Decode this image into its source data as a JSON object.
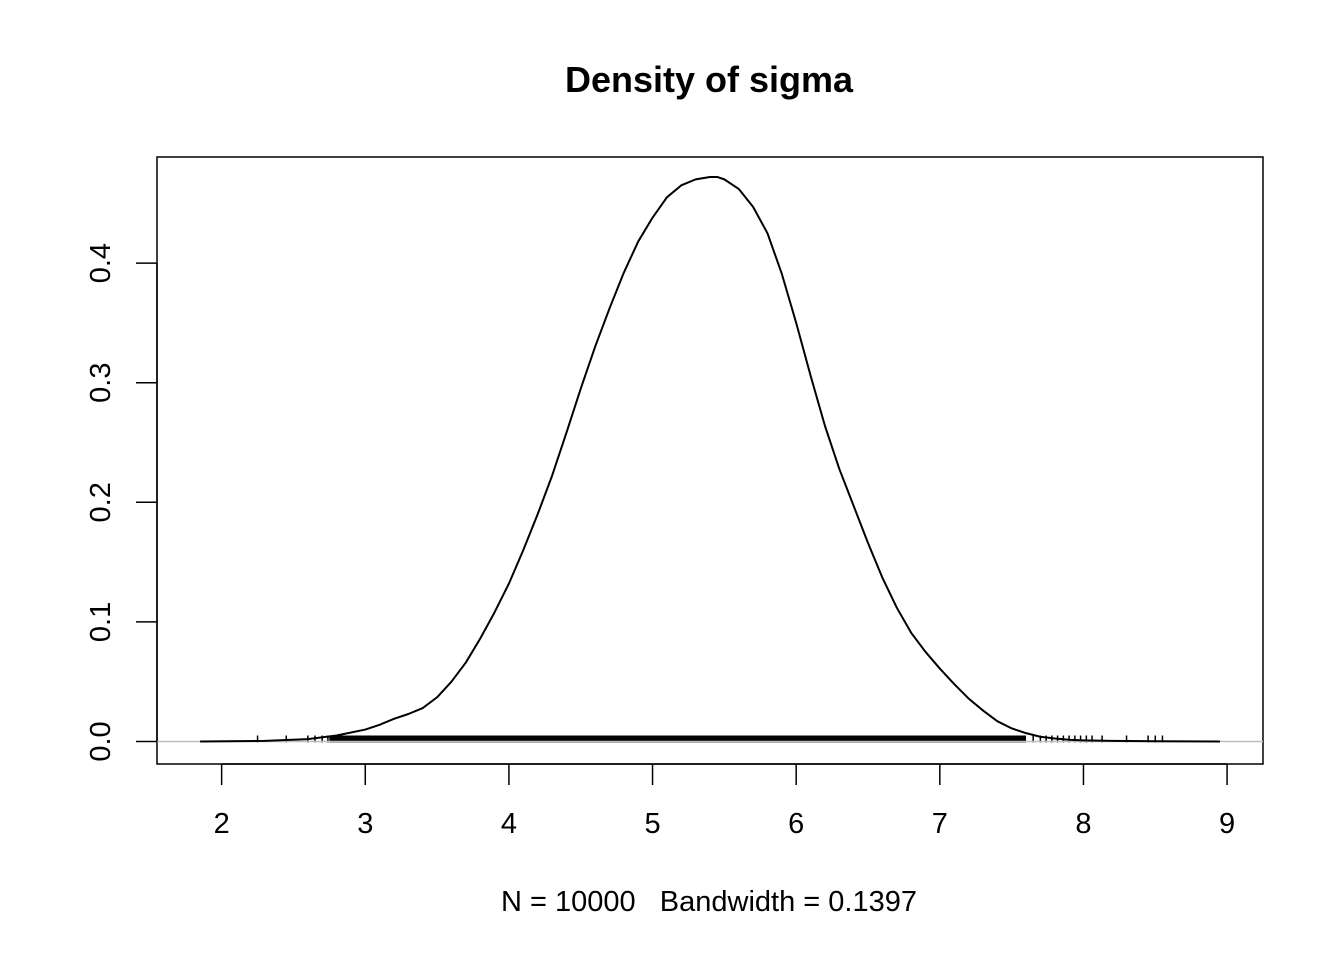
{
  "chart_data": {
    "type": "line",
    "title": "Density of sigma",
    "xlabel": "N = 10000   Bandwidth = 0.1397",
    "ylabel": "",
    "xlim": [
      1.55,
      9.25
    ],
    "ylim": [
      -0.0188,
      0.4887
    ],
    "x_ticks": [
      2,
      3,
      4,
      5,
      6,
      7,
      8,
      9
    ],
    "y_ticks": [
      0.0,
      0.1,
      0.2,
      0.3,
      0.4
    ],
    "x_tick_labels": [
      "2",
      "3",
      "4",
      "5",
      "6",
      "7",
      "8",
      "9"
    ],
    "y_tick_labels": [
      "0.0",
      "0.1",
      "0.2",
      "0.3",
      "0.4"
    ],
    "grid": false,
    "baseline_color": "#bebebe",
    "series": [
      {
        "color": "#000000",
        "x": [
          1.85,
          2.3,
          2.6,
          2.8,
          3.0,
          3.1,
          3.2,
          3.3,
          3.4,
          3.5,
          3.6,
          3.7,
          3.8,
          3.9,
          4.0,
          4.1,
          4.2,
          4.3,
          4.4,
          4.5,
          4.6,
          4.7,
          4.8,
          4.9,
          5.0,
          5.1,
          5.2,
          5.3,
          5.4,
          5.45,
          5.5,
          5.6,
          5.7,
          5.8,
          5.9,
          6.0,
          6.1,
          6.2,
          6.3,
          6.4,
          6.5,
          6.6,
          6.7,
          6.8,
          6.9,
          7.0,
          7.1,
          7.2,
          7.3,
          7.4,
          7.5,
          7.6,
          7.7,
          7.8,
          7.9,
          8.0,
          8.2,
          8.5,
          8.95
        ],
        "y": [
          0.0,
          0.0005,
          0.002,
          0.005,
          0.01,
          0.014,
          0.019,
          0.023,
          0.028,
          0.037,
          0.05,
          0.066,
          0.086,
          0.108,
          0.132,
          0.16,
          0.19,
          0.222,
          0.258,
          0.295,
          0.33,
          0.362,
          0.392,
          0.418,
          0.438,
          0.455,
          0.465,
          0.47,
          0.472,
          0.472,
          0.47,
          0.462,
          0.447,
          0.425,
          0.391,
          0.35,
          0.306,
          0.264,
          0.228,
          0.197,
          0.166,
          0.137,
          0.112,
          0.091,
          0.075,
          0.061,
          0.048,
          0.036,
          0.026,
          0.017,
          0.011,
          0.007,
          0.004,
          0.0025,
          0.0015,
          0.001,
          0.0005,
          0.0002,
          0.0
        ]
      }
    ],
    "rug": [
      2.25,
      2.45,
      2.6,
      2.65,
      2.7,
      2.74,
      2.78,
      2.82,
      2.86,
      2.9,
      2.93,
      2.96,
      3.0,
      3.03,
      3.06,
      3.09,
      3.12,
      3.15,
      3.18,
      3.22,
      7.65,
      7.7,
      7.74,
      7.78,
      7.82,
      7.86,
      7.9,
      7.94,
      7.98,
      8.02,
      8.06,
      8.13,
      8.3,
      8.45,
      8.5,
      8.55
    ]
  }
}
